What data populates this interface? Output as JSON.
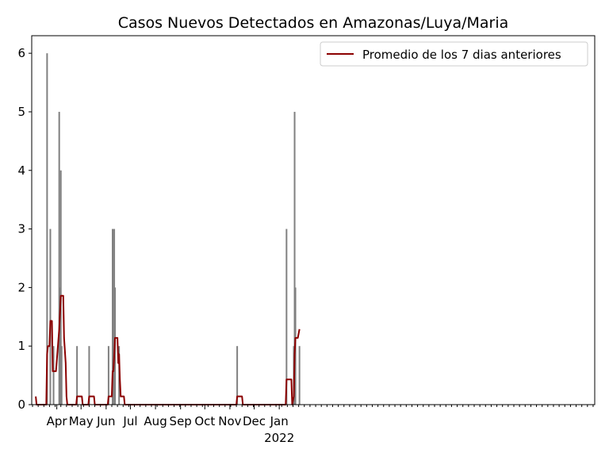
{
  "chart_data": {
    "type": "bar+line",
    "title": "Casos Nuevos Detectados en Amazonas/Luya/Maria",
    "xlabel": "",
    "ylabel": "",
    "x_range": [
      "2020-03-01",
      "2022-01-26"
    ],
    "ylim": [
      0,
      6.3
    ],
    "y_ticks": [
      0,
      1,
      2,
      3,
      4,
      5,
      6
    ],
    "x_ticks": [
      {
        "date": "2020-04-01",
        "label": "Apr",
        "sublabel": ""
      },
      {
        "date": "2020-05-01",
        "label": "May",
        "sublabel": ""
      },
      {
        "date": "2020-06-01",
        "label": "Jun",
        "sublabel": ""
      },
      {
        "date": "2020-07-01",
        "label": "Jul",
        "sublabel": ""
      },
      {
        "date": "2020-08-01",
        "label": "Aug",
        "sublabel": ""
      },
      {
        "date": "2020-09-01",
        "label": "Sep",
        "sublabel": ""
      },
      {
        "date": "2020-10-01",
        "label": "Oct",
        "sublabel": ""
      },
      {
        "date": "2020-11-01",
        "label": "Nov",
        "sublabel": ""
      },
      {
        "date": "2020-12-01",
        "label": "Dec",
        "sublabel": ""
      },
      {
        "date": "2021-01-01",
        "label": "Jan",
        "sublabel": "2022"
      }
    ],
    "grid": false,
    "legend": {
      "placement": "top-right",
      "entries": [
        "Promedio de los 7 dias anteriores"
      ]
    },
    "bar_color": "#808080",
    "line_color": "#8b0000",
    "bars": [
      {
        "date": "2020-03-20",
        "value": 6
      },
      {
        "date": "2020-03-24",
        "value": 3
      },
      {
        "date": "2020-03-28",
        "value": 1
      },
      {
        "date": "2020-04-04",
        "value": 5
      },
      {
        "date": "2020-04-05",
        "value": 2
      },
      {
        "date": "2020-04-06",
        "value": 4
      },
      {
        "date": "2020-04-07",
        "value": 1
      },
      {
        "date": "2020-04-26",
        "value": 1
      },
      {
        "date": "2020-05-11",
        "value": 1
      },
      {
        "date": "2020-06-04",
        "value": 1
      },
      {
        "date": "2020-06-09",
        "value": 3
      },
      {
        "date": "2020-06-11",
        "value": 3
      },
      {
        "date": "2020-06-12",
        "value": 2
      },
      {
        "date": "2020-06-17",
        "value": 1
      },
      {
        "date": "2020-11-10",
        "value": 1
      },
      {
        "date": "2021-01-10",
        "value": 3
      },
      {
        "date": "2021-01-19",
        "value": 1
      },
      {
        "date": "2021-01-20",
        "value": 5
      },
      {
        "date": "2021-01-21",
        "value": 2
      },
      {
        "date": "2021-01-26",
        "value": 1
      }
    ],
    "series": [
      {
        "name": "Promedio de los 7 dias anteriores",
        "points": [
          [
            "2020-03-06",
            0.14
          ],
          [
            "2020-03-07",
            0
          ],
          [
            "2020-03-19",
            0
          ],
          [
            "2020-03-20",
            0.86
          ],
          [
            "2020-03-21",
            1.0
          ],
          [
            "2020-03-23",
            1.0
          ],
          [
            "2020-03-24",
            1.43
          ],
          [
            "2020-03-26",
            1.43
          ],
          [
            "2020-03-27",
            0.57
          ],
          [
            "2020-03-31",
            0.57
          ],
          [
            "2020-04-04",
            1.29
          ],
          [
            "2020-04-06",
            1.86
          ],
          [
            "2020-04-09",
            1.86
          ],
          [
            "2020-04-10",
            1.14
          ],
          [
            "2020-04-12",
            0.71
          ],
          [
            "2020-04-13",
            0.14
          ],
          [
            "2020-04-14",
            0
          ],
          [
            "2020-04-25",
            0
          ],
          [
            "2020-04-26",
            0.14
          ],
          [
            "2020-05-02",
            0.14
          ],
          [
            "2020-05-03",
            0
          ],
          [
            "2020-05-10",
            0
          ],
          [
            "2020-05-11",
            0.14
          ],
          [
            "2020-05-17",
            0.14
          ],
          [
            "2020-05-18",
            0
          ],
          [
            "2020-06-03",
            0
          ],
          [
            "2020-06-04",
            0.14
          ],
          [
            "2020-06-08",
            0.14
          ],
          [
            "2020-06-09",
            0.57
          ],
          [
            "2020-06-10",
            0.57
          ],
          [
            "2020-06-12",
            1.14
          ],
          [
            "2020-06-15",
            1.14
          ],
          [
            "2020-06-16",
            0.71
          ],
          [
            "2020-06-17",
            0.86
          ],
          [
            "2020-06-18",
            0.43
          ],
          [
            "2020-06-19",
            0.14
          ],
          [
            "2020-06-23",
            0.14
          ],
          [
            "2020-06-24",
            0
          ],
          [
            "2020-11-09",
            0
          ],
          [
            "2020-11-10",
            0.14
          ],
          [
            "2020-11-16",
            0.14
          ],
          [
            "2020-11-17",
            0
          ],
          [
            "2021-01-09",
            0
          ],
          [
            "2021-01-10",
            0.43
          ],
          [
            "2021-01-16",
            0.43
          ],
          [
            "2021-01-17",
            0
          ],
          [
            "2021-01-19",
            0.14
          ],
          [
            "2021-01-20",
            0.86
          ],
          [
            "2021-01-21",
            1.14
          ],
          [
            "2021-01-24",
            1.14
          ],
          [
            "2021-01-26",
            1.29
          ]
        ]
      }
    ]
  }
}
